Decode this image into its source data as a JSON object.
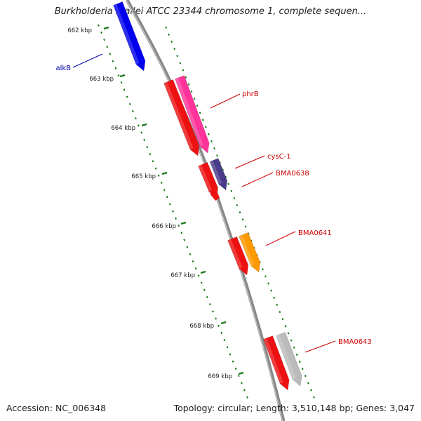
{
  "title": "Burkholderia mallei ATCC 23344 chromosome 1, complete sequen...",
  "accession_text": "Accession: NC_006348",
  "topology_text": "Topology: circular; Length: 3,510,148 bp; Genes: 3,047",
  "ticks": [
    "662 kbp",
    "663 kbp",
    "664 kbp",
    "665 kbp",
    "666 kbp",
    "667 kbp",
    "668 kbp",
    "669 kbp"
  ],
  "colors": {
    "backbone": "#888888",
    "tick": "#1a7a1a",
    "alkB": "#0000ee",
    "cds_red": "#ee1111",
    "phrB": "#ff3399",
    "cysC1": "#4a3a8a",
    "BMA0641": "#ff9900",
    "BMA0643": "#bbbbbb",
    "label_red": "#cc0000",
    "label_blue": "#0000aa"
  },
  "genes": [
    {
      "name": "alkB",
      "color_key": "alkB",
      "label_color_key": "label_blue"
    },
    {
      "name": "phrB",
      "color_key": "phrB",
      "label_color_key": "label_red"
    },
    {
      "name": "cysC-1",
      "color_key": "cysC1",
      "label_color_key": "label_red"
    },
    {
      "name": "BMA0638",
      "color_key": "cds_red",
      "label_color_key": "label_red"
    },
    {
      "name": "BMA0641",
      "color_key": "BMA0641",
      "label_color_key": "label_red"
    },
    {
      "name": "BMA0643",
      "color_key": "BMA0643",
      "label_color_key": "label_red"
    }
  ]
}
